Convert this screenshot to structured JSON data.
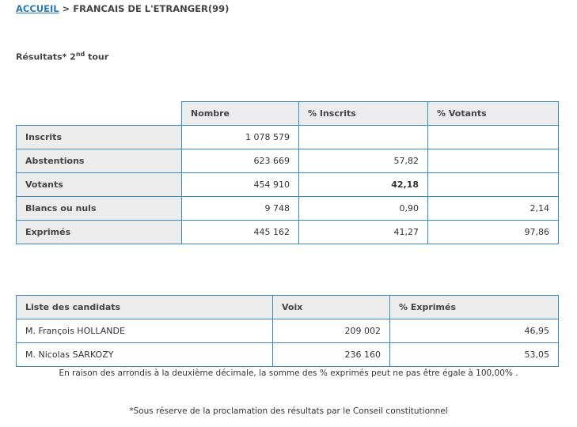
{
  "breadcrumb": {
    "home": "ACCUEIL",
    "separator": ">",
    "current": "FRANCAIS DE L'ETRANGER(99)"
  },
  "title": {
    "prefix": "Résultats* 2",
    "sup": "nd",
    "suffix": " tour"
  },
  "results": {
    "headers": [
      "Nombre",
      "% Inscrits",
      "% Votants"
    ],
    "rows": [
      {
        "label": "Inscrits",
        "nombre": "1 078 579",
        "inscrits": "",
        "votants": ""
      },
      {
        "label": "Abstentions",
        "nombre": "623 669",
        "inscrits": "57,82",
        "votants": ""
      },
      {
        "label": "Votants",
        "nombre": "454 910",
        "inscrits": "42,18",
        "votants": ""
      },
      {
        "label": "Blancs ou nuls",
        "nombre": "9 748",
        "inscrits": "0,90",
        "votants": "2,14"
      },
      {
        "label": "Exprimés",
        "nombre": "445 162",
        "inscrits": "41,27",
        "votants": "97,86"
      }
    ]
  },
  "candidates": {
    "headers": [
      "Liste des candidats",
      "Voix",
      "% Exprimés"
    ],
    "rows": [
      {
        "name": "M. François HOLLANDE",
        "voix": "209 002",
        "pct": "46,95"
      },
      {
        "name": "M. Nicolas SARKOZY",
        "voix": "236 160",
        "pct": "53,05"
      }
    ]
  },
  "notes": {
    "rounding": "En raison des arrondis à la deuxième décimale, la somme des % exprimés peut ne pas être égale à 100,00% .",
    "reserve": "*Sous réserve de la proclamation des résultats par le Conseil constitutionnel"
  },
  "colors": {
    "border": "#3a8ac4",
    "header_bg": "#ececec",
    "link": "#2a7ab8"
  }
}
